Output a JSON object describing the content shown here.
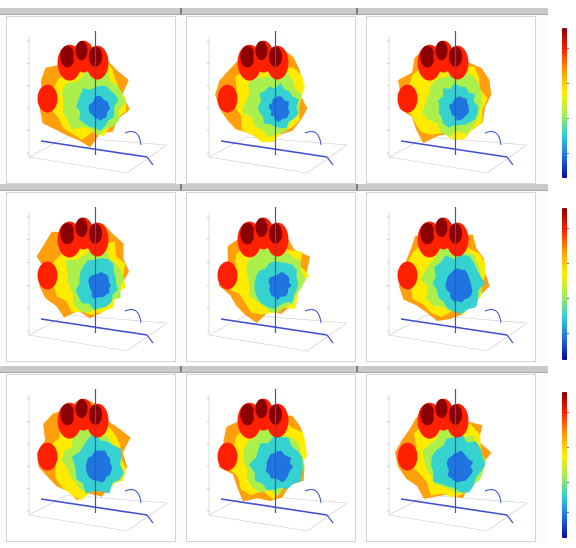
{
  "figure": {
    "rows": [
      {
        "cells": [
          {
            "title": "",
            "legend": [
              "",
              "",
              ""
            ]
          },
          {
            "title": "",
            "legend": [
              "",
              "",
              ""
            ]
          },
          {
            "title": "",
            "legend": [
              "",
              "",
              ""
            ]
          }
        ]
      },
      {
        "cells": [
          {
            "title": "",
            "legend": [
              "",
              "",
              ""
            ]
          },
          {
            "title": "",
            "legend": [
              "",
              "",
              ""
            ]
          },
          {
            "title": "",
            "legend": [
              "",
              "",
              ""
            ]
          }
        ]
      },
      {
        "cells": [
          {
            "title": "",
            "legend": [
              "",
              "",
              ""
            ]
          },
          {
            "title": "",
            "legend": [
              "",
              "",
              ""
            ]
          },
          {
            "title": "",
            "legend": [
              "",
              "",
              ""
            ]
          }
        ]
      }
    ],
    "colormap": [
      "#8b0000",
      "#ff2000",
      "#ff9a00",
      "#ffee00",
      "#a6ef50",
      "#2fd0d6",
      "#1f6fe0",
      "#0a0a9a"
    ],
    "axis_color": "#3d4fd1",
    "grid_color": "#c8c8c8",
    "header_color": "#c9c9c9"
  }
}
